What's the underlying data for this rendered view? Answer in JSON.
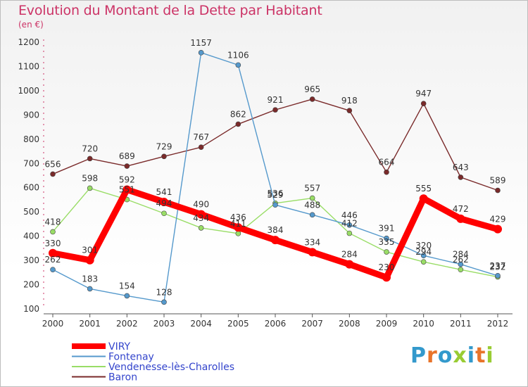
{
  "title": "Evolution du Montant de la Dette par Habitant",
  "unit": "(en €)",
  "logo": {
    "text": "Proxiti",
    "letter_colors": [
      "#3399cc",
      "#e8742a",
      "#3399cc",
      "#99cc33",
      "#3399cc",
      "#e8742a",
      "#99cc33"
    ]
  },
  "chart_data": {
    "type": "line",
    "x": [
      "2000",
      "2001",
      "2002",
      "2003",
      "2004",
      "2005",
      "2006",
      "2007",
      "2008",
      "2009",
      "2010",
      "2011",
      "2012"
    ],
    "y_ticks": [
      100,
      200,
      300,
      400,
      500,
      600,
      700,
      800,
      900,
      1000,
      1100,
      1200
    ],
    "ylim": [
      100,
      1200
    ],
    "grid": false,
    "legend_position": "bottom-left",
    "series": [
      {
        "name": "Baron",
        "color": "#7a2a2a",
        "values": [
          656,
          720,
          689,
          729,
          767,
          862,
          921,
          965,
          918,
          664,
          947,
          643,
          589
        ]
      },
      {
        "name": "Vendenesse-lès-Charolles",
        "color": "#99dd66",
        "values": [
          418,
          598,
          551,
          494,
          434,
          411,
          536,
          557,
          412,
          335,
          294,
          262,
          232
        ]
      },
      {
        "name": "Fontenay",
        "color": "#5599cc",
        "values": [
          262,
          183,
          154,
          128,
          1157,
          1106,
          529,
          488,
          446,
          391,
          320,
          284,
          237
        ]
      },
      {
        "name": "VIRY",
        "color": "#ff0000",
        "values": [
          330,
          301,
          592,
          541,
          490,
          436,
          384,
          334,
          284,
          230,
          555,
          472,
          429
        ]
      }
    ],
    "legend_order": [
      "VIRY",
      "Fontenay",
      "Vendenesse-lès-Charolles",
      "Baron"
    ]
  }
}
